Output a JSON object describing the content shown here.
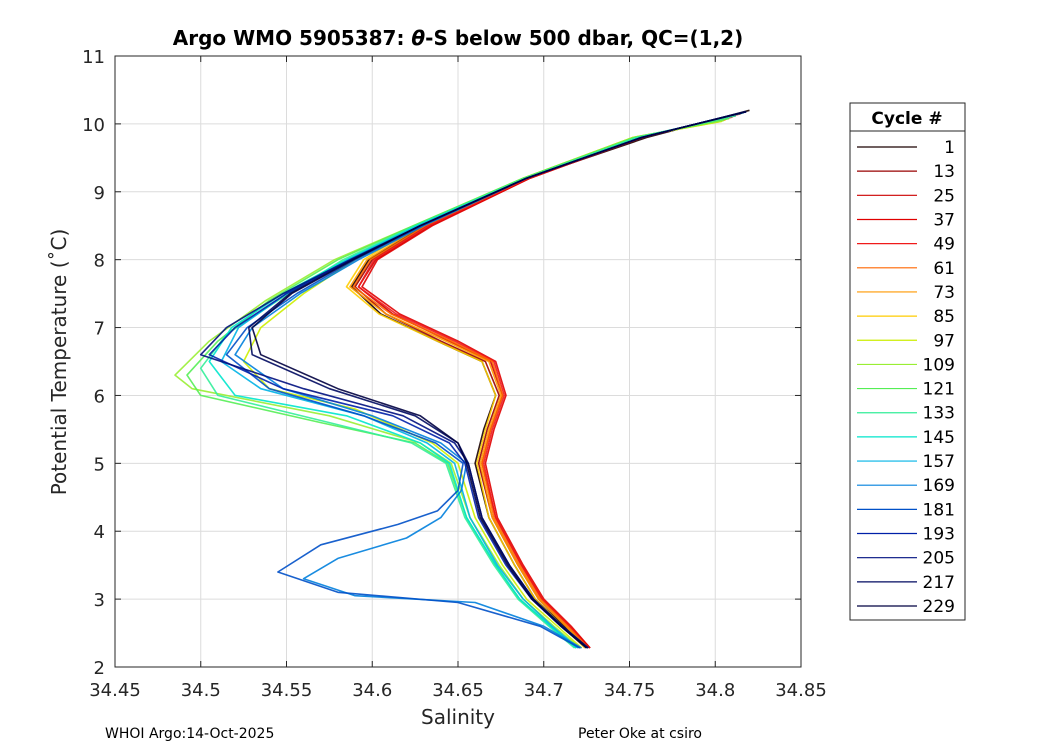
{
  "chart_data": {
    "type": "line",
    "title_prefix": "Argo WMO 5905387: ",
    "title_symbol": "θ",
    "title_suffix": "-S below 500 dbar,  QC=(1,2)",
    "xlabel": "Salinity",
    "ylabel": "Potential Temperature (˚C)",
    "xlim": [
      34.45,
      34.85
    ],
    "ylim": [
      2,
      11
    ],
    "xticks": [
      "34.45",
      "34.5",
      "34.55",
      "34.6",
      "34.65",
      "34.7",
      "34.75",
      "34.8",
      "34.85"
    ],
    "yticks": [
      "2",
      "3",
      "4",
      "5",
      "6",
      "7",
      "8",
      "9",
      "10",
      "11"
    ],
    "grid": true,
    "legend_title": "Cycle #",
    "legend_placement": "right",
    "series": [
      {
        "name": "1",
        "color": "#1a0000",
        "salinity": [
          34.725,
          34.712,
          34.695,
          34.683,
          34.668,
          34.66,
          34.665,
          34.672,
          34.664,
          34.638,
          34.605,
          34.588,
          34.598,
          34.63,
          34.69,
          34.76,
          34.82
        ],
        "theta": [
          2.28,
          2.6,
          3.0,
          3.5,
          4.2,
          5.0,
          5.5,
          6.0,
          6.5,
          6.8,
          7.2,
          7.6,
          8.0,
          8.5,
          9.2,
          9.8,
          10.2
        ]
      },
      {
        "name": "13",
        "color": "#990000",
        "salinity": [
          34.726,
          34.713,
          34.697,
          34.685,
          34.67,
          34.662,
          34.667,
          34.674,
          34.666,
          34.64,
          34.608,
          34.59,
          34.6,
          34.632,
          34.691,
          34.758,
          34.818
        ],
        "theta": [
          2.28,
          2.6,
          3.0,
          3.5,
          4.2,
          5.0,
          5.5,
          6.0,
          6.5,
          6.8,
          7.2,
          7.6,
          8.0,
          8.5,
          9.2,
          9.8,
          10.18
        ]
      },
      {
        "name": "25",
        "color": "#cc0000",
        "salinity": [
          34.727,
          34.715,
          34.699,
          34.687,
          34.672,
          34.664,
          34.669,
          34.676,
          34.669,
          34.645,
          34.612,
          34.592,
          34.602,
          34.634,
          34.692,
          34.757,
          34.815
        ],
        "theta": [
          2.28,
          2.6,
          3.0,
          3.5,
          4.2,
          5.0,
          5.5,
          6.0,
          6.5,
          6.8,
          7.2,
          7.6,
          8.0,
          8.5,
          9.2,
          9.8,
          10.15
        ]
      },
      {
        "name": "37",
        "color": "#e00000",
        "salinity": [
          34.727,
          34.716,
          34.7,
          34.688,
          34.673,
          34.666,
          34.671,
          34.678,
          34.672,
          34.65,
          34.616,
          34.594,
          34.603,
          34.635,
          34.692,
          34.756,
          34.812
        ],
        "theta": [
          2.28,
          2.6,
          3.0,
          3.5,
          4.2,
          5.0,
          5.5,
          6.0,
          6.5,
          6.8,
          7.2,
          7.6,
          8.0,
          8.5,
          9.2,
          9.8,
          10.12
        ]
      },
      {
        "name": "49",
        "color": "#f01a1a",
        "salinity": [
          34.726,
          34.715,
          34.699,
          34.687,
          34.672,
          34.665,
          34.67,
          34.677,
          34.671,
          34.648,
          34.614,
          34.592,
          34.601,
          34.633,
          34.691,
          34.755,
          34.81
        ],
        "theta": [
          2.28,
          2.6,
          3.0,
          3.5,
          4.2,
          5.0,
          5.5,
          6.0,
          6.5,
          6.8,
          7.2,
          7.6,
          8.0,
          8.5,
          9.2,
          9.8,
          10.1
        ]
      },
      {
        "name": "61",
        "color": "#ff6600",
        "salinity": [
          34.726,
          34.714,
          34.698,
          34.686,
          34.671,
          34.664,
          34.669,
          34.676,
          34.67,
          34.646,
          34.611,
          34.589,
          34.599,
          34.631,
          34.69,
          34.754,
          34.808
        ],
        "theta": [
          2.28,
          2.6,
          3.0,
          3.5,
          4.2,
          5.0,
          5.5,
          6.0,
          6.5,
          6.8,
          7.2,
          7.6,
          8.0,
          8.5,
          9.2,
          9.8,
          10.08
        ]
      },
      {
        "name": "73",
        "color": "#ff9900",
        "salinity": [
          34.725,
          34.713,
          34.697,
          34.685,
          34.67,
          34.663,
          34.668,
          34.675,
          34.668,
          34.643,
          34.608,
          34.587,
          34.597,
          34.629,
          34.689,
          34.753,
          34.806
        ],
        "theta": [
          2.28,
          2.6,
          3.0,
          3.5,
          4.2,
          5.0,
          5.5,
          6.0,
          6.5,
          6.8,
          7.2,
          7.6,
          8.0,
          8.5,
          9.2,
          9.8,
          10.06
        ]
      },
      {
        "name": "85",
        "color": "#ffcc00",
        "salinity": [
          34.724,
          34.711,
          34.695,
          34.683,
          34.668,
          34.661,
          34.666,
          34.672,
          34.664,
          34.638,
          34.604,
          34.585,
          34.595,
          34.627,
          34.688,
          34.752,
          34.804
        ],
        "theta": [
          2.28,
          2.6,
          3.0,
          3.5,
          4.2,
          5.0,
          5.5,
          6.0,
          6.5,
          6.8,
          7.2,
          7.6,
          8.0,
          8.5,
          9.2,
          9.8,
          10.04
        ]
      },
      {
        "name": "97",
        "color": "#ccee00",
        "salinity": [
          34.722,
          34.708,
          34.69,
          34.676,
          34.66,
          34.65,
          34.635,
          34.59,
          34.54,
          34.525,
          34.535,
          34.56,
          34.59,
          34.628,
          34.688,
          34.752,
          34.804
        ],
        "theta": [
          2.28,
          2.6,
          3.0,
          3.5,
          4.2,
          5.0,
          5.3,
          5.8,
          6.1,
          6.5,
          7.0,
          7.5,
          8.0,
          8.5,
          9.2,
          9.8,
          10.04
        ]
      },
      {
        "name": "109",
        "color": "#99ee33",
        "salinity": [
          34.721,
          34.706,
          34.688,
          34.674,
          34.657,
          34.646,
          34.628,
          34.575,
          34.495,
          34.485,
          34.505,
          34.538,
          34.578,
          34.624,
          34.688,
          34.752,
          34.805
        ],
        "theta": [
          2.28,
          2.6,
          3.0,
          3.5,
          4.2,
          5.0,
          5.3,
          5.7,
          6.1,
          6.3,
          6.8,
          7.4,
          8.0,
          8.5,
          9.2,
          9.8,
          10.05
        ]
      },
      {
        "name": "121",
        "color": "#55ee55",
        "salinity": [
          34.719,
          34.704,
          34.686,
          34.672,
          34.655,
          34.644,
          34.625,
          34.57,
          34.5,
          34.492,
          34.51,
          34.54,
          34.58,
          34.624,
          34.688,
          34.753,
          34.808
        ],
        "theta": [
          2.28,
          2.6,
          3.0,
          3.5,
          4.2,
          5.0,
          5.3,
          5.6,
          6.0,
          6.3,
          6.8,
          7.4,
          8.0,
          8.5,
          9.2,
          9.8,
          10.08
        ]
      },
      {
        "name": "133",
        "color": "#33ee99",
        "salinity": [
          34.718,
          34.703,
          34.685,
          34.671,
          34.654,
          34.643,
          34.623,
          34.575,
          34.51,
          34.5,
          34.515,
          34.545,
          34.583,
          34.625,
          34.689,
          34.754,
          34.812
        ],
        "theta": [
          2.28,
          2.6,
          3.0,
          3.5,
          4.2,
          5.0,
          5.3,
          5.6,
          6.0,
          6.4,
          6.9,
          7.4,
          8.0,
          8.5,
          9.2,
          9.8,
          10.12
        ]
      },
      {
        "name": "145",
        "color": "#00e6cc",
        "salinity": [
          34.719,
          34.704,
          34.686,
          34.672,
          34.655,
          34.645,
          34.628,
          34.585,
          34.52,
          34.505,
          34.518,
          34.548,
          34.585,
          34.626,
          34.69,
          34.756,
          34.816
        ],
        "theta": [
          2.28,
          2.6,
          3.0,
          3.5,
          4.2,
          5.0,
          5.3,
          5.7,
          6.0,
          6.5,
          7.0,
          7.5,
          8.0,
          8.5,
          9.2,
          9.8,
          10.16
        ]
      },
      {
        "name": "157",
        "color": "#00b3e6",
        "salinity": [
          34.72,
          34.705,
          34.688,
          34.673,
          34.657,
          34.648,
          34.632,
          34.595,
          34.535,
          34.512,
          34.522,
          34.55,
          34.586,
          34.627,
          34.69,
          34.757,
          34.818
        ],
        "theta": [
          2.28,
          2.6,
          3.0,
          3.5,
          4.2,
          5.0,
          5.3,
          5.7,
          6.1,
          6.5,
          7.0,
          7.5,
          8.0,
          8.5,
          9.2,
          9.8,
          10.18
        ]
      },
      {
        "name": "169",
        "color": "#0080dd",
        "salinity": [
          34.722,
          34.7,
          34.66,
          34.59,
          34.56,
          34.58,
          34.62,
          34.64,
          34.652,
          34.655,
          34.64,
          34.6,
          34.548,
          34.52,
          34.53,
          34.558,
          34.592,
          34.63,
          34.69,
          34.757,
          34.818
        ],
        "theta": [
          2.28,
          2.6,
          2.95,
          3.05,
          3.3,
          3.6,
          3.9,
          4.2,
          4.6,
          5.0,
          5.3,
          5.7,
          6.1,
          6.6,
          7.0,
          7.5,
          8.0,
          8.5,
          9.2,
          9.8,
          10.18
        ]
      },
      {
        "name": "181",
        "color": "#0050c8",
        "salinity": [
          34.721,
          34.698,
          34.65,
          34.58,
          34.545,
          34.57,
          34.615,
          34.638,
          34.65,
          34.653,
          34.637,
          34.595,
          34.54,
          34.515,
          34.527,
          34.556,
          34.59,
          34.629,
          34.69,
          34.757,
          34.818
        ],
        "theta": [
          2.28,
          2.6,
          2.95,
          3.1,
          3.4,
          3.8,
          4.1,
          4.3,
          4.6,
          5.0,
          5.3,
          5.7,
          6.1,
          6.6,
          7.0,
          7.5,
          8.0,
          8.5,
          9.2,
          9.8,
          10.18
        ]
      },
      {
        "name": "193",
        "color": "#0020a8",
        "salinity": [
          34.725,
          34.71,
          34.693,
          34.678,
          34.662,
          34.654,
          34.645,
          34.612,
          34.548,
          34.505,
          34.52,
          34.55,
          34.588,
          34.628,
          34.69,
          34.757,
          34.818
        ],
        "theta": [
          2.28,
          2.6,
          3.0,
          3.5,
          4.2,
          5.0,
          5.3,
          5.7,
          6.1,
          6.6,
          7.0,
          7.5,
          8.0,
          8.5,
          9.2,
          9.8,
          10.18
        ]
      },
      {
        "name": "205",
        "color": "#001080",
        "salinity": [
          34.726,
          34.711,
          34.694,
          34.68,
          34.664,
          34.656,
          34.648,
          34.618,
          34.56,
          34.5,
          34.515,
          34.548,
          34.587,
          34.628,
          34.69,
          34.757,
          34.818
        ],
        "theta": [
          2.28,
          2.6,
          3.0,
          3.5,
          4.2,
          5.0,
          5.3,
          5.7,
          6.1,
          6.6,
          7.0,
          7.5,
          8.0,
          8.5,
          9.2,
          9.8,
          10.18
        ]
      },
      {
        "name": "217",
        "color": "#000a60",
        "salinity": [
          34.726,
          34.711,
          34.694,
          34.68,
          34.664,
          34.656,
          34.65,
          34.625,
          34.575,
          34.53,
          34.528,
          34.552,
          34.588,
          34.628,
          34.69,
          34.757,
          34.818
        ],
        "theta": [
          2.28,
          2.6,
          3.0,
          3.5,
          4.2,
          5.0,
          5.3,
          5.7,
          6.1,
          6.6,
          7.0,
          7.5,
          8.0,
          8.5,
          9.2,
          9.8,
          10.18
        ]
      },
      {
        "name": "229",
        "color": "#000040",
        "salinity": [
          34.725,
          34.71,
          34.693,
          34.679,
          34.663,
          34.655,
          34.65,
          34.628,
          34.58,
          34.535,
          34.53,
          34.553,
          34.589,
          34.628,
          34.69,
          34.757,
          34.818
        ],
        "theta": [
          2.28,
          2.6,
          3.0,
          3.5,
          4.2,
          5.0,
          5.3,
          5.7,
          6.1,
          6.6,
          7.0,
          7.5,
          8.0,
          8.5,
          9.2,
          9.8,
          10.18
        ]
      }
    ]
  },
  "footer": {
    "left": "WHOI Argo:14-Oct-2025",
    "right": "Peter Oke at csiro"
  }
}
